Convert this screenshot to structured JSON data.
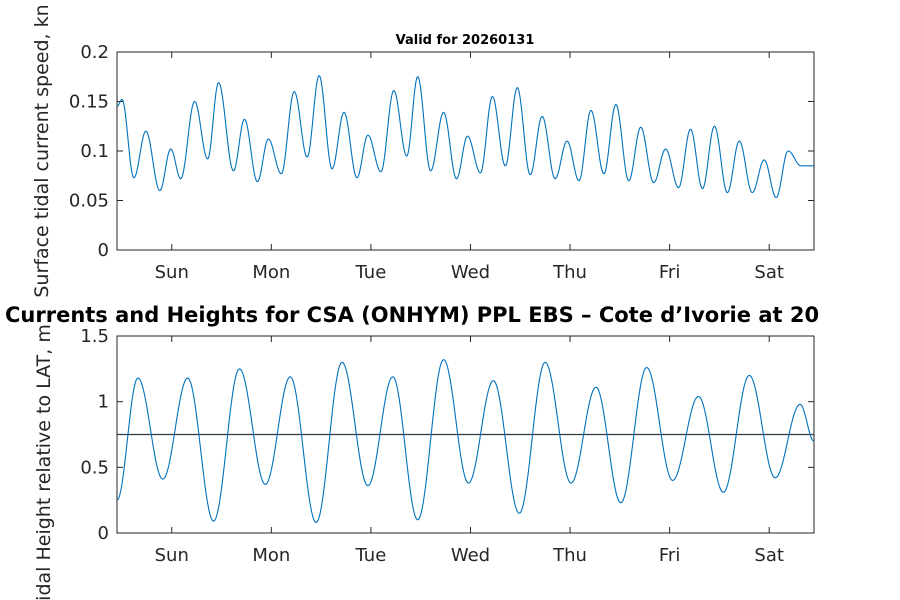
{
  "chart_data": [
    {
      "type": "line",
      "title": "Valid for 20260131",
      "ylabel": "Surface tidal current speed, kn",
      "xlabel": "",
      "ylim": [
        0,
        0.2
      ],
      "yticks": [
        0,
        0.05,
        0.1,
        0.15,
        0.2
      ],
      "ytick_labels": [
        "0",
        "0.05",
        "0.1",
        "0.15",
        "0.2"
      ],
      "xlim_days": [
        0,
        7
      ],
      "xticks_days": [
        0.55,
        1.55,
        2.55,
        3.55,
        4.55,
        5.55,
        6.55
      ],
      "xtick_labels": [
        "Sun",
        "Mon",
        "Tue",
        "Wed",
        "Thu",
        "Fri",
        "Sat"
      ],
      "grid": false,
      "series": [
        {
          "name": "Surface tidal current speed",
          "color": "#0072BD",
          "x_days": [
            0.0,
            0.05,
            0.17,
            0.29,
            0.43,
            0.54,
            0.64,
            0.78,
            0.91,
            1.02,
            1.17,
            1.28,
            1.41,
            1.52,
            1.65,
            1.78,
            1.91,
            2.03,
            2.16,
            2.28,
            2.41,
            2.52,
            2.65,
            2.78,
            2.91,
            3.02,
            3.15,
            3.28,
            3.41,
            3.52,
            3.65,
            3.77,
            3.9,
            4.02,
            4.15,
            4.27,
            4.4,
            4.52,
            4.64,
            4.76,
            4.89,
            5.01,
            5.14,
            5.26,
            5.39,
            5.51,
            5.64,
            5.76,
            5.88,
            6.0,
            6.13,
            6.25,
            6.38,
            6.5,
            6.62,
            6.74,
            6.87,
            6.98,
            7.0
          ],
          "values": [
            0.145,
            0.152,
            0.073,
            0.12,
            0.06,
            0.102,
            0.072,
            0.15,
            0.092,
            0.169,
            0.08,
            0.132,
            0.069,
            0.112,
            0.077,
            0.16,
            0.094,
            0.176,
            0.082,
            0.139,
            0.073,
            0.116,
            0.079,
            0.161,
            0.095,
            0.175,
            0.08,
            0.139,
            0.072,
            0.115,
            0.078,
            0.155,
            0.085,
            0.164,
            0.076,
            0.135,
            0.072,
            0.11,
            0.07,
            0.141,
            0.077,
            0.147,
            0.07,
            0.124,
            0.068,
            0.102,
            0.063,
            0.122,
            0.062,
            0.125,
            0.058,
            0.11,
            0.058,
            0.091,
            0.053,
            0.1,
            0.085,
            0.085,
            0.085
          ]
        }
      ]
    },
    {
      "type": "line",
      "title": "Currents and Heights for CSA (ONHYM) PPL EBS  – Cote d’Ivorie at 20",
      "ylabel": "Tidal Height relative to LAT, m",
      "xlabel": "",
      "ylim": [
        0,
        1.5
      ],
      "yticks": [
        0,
        0.5,
        1,
        1.5
      ],
      "ytick_labels": [
        "0",
        "0.5",
        "1",
        "1.5"
      ],
      "xlim_days": [
        0,
        7
      ],
      "xticks_days": [
        0.55,
        1.55,
        2.55,
        3.55,
        4.55,
        5.55,
        6.55
      ],
      "xtick_labels": [
        "Sun",
        "Mon",
        "Tue",
        "Wed",
        "Thu",
        "Fri",
        "Sat"
      ],
      "grid": false,
      "reference_line": {
        "y": 0.75,
        "color": "#2b3a42"
      },
      "series": [
        {
          "name": "Tidal height",
          "color": "#0072BD",
          "x_days": [
            0.0,
            0.21,
            0.46,
            0.71,
            0.97,
            1.23,
            1.49,
            1.74,
            2.0,
            2.26,
            2.52,
            2.77,
            3.02,
            3.28,
            3.53,
            3.78,
            4.04,
            4.3,
            4.56,
            4.81,
            5.06,
            5.32,
            5.58,
            5.84,
            6.09,
            6.35,
            6.61,
            6.86,
            7.0
          ],
          "values": [
            0.25,
            1.18,
            0.41,
            1.18,
            0.09,
            1.25,
            0.37,
            1.19,
            0.08,
            1.3,
            0.36,
            1.19,
            0.1,
            1.32,
            0.38,
            1.16,
            0.15,
            1.3,
            0.38,
            1.11,
            0.23,
            1.26,
            0.4,
            1.04,
            0.31,
            1.2,
            0.42,
            0.98,
            0.7
          ]
        }
      ]
    }
  ]
}
